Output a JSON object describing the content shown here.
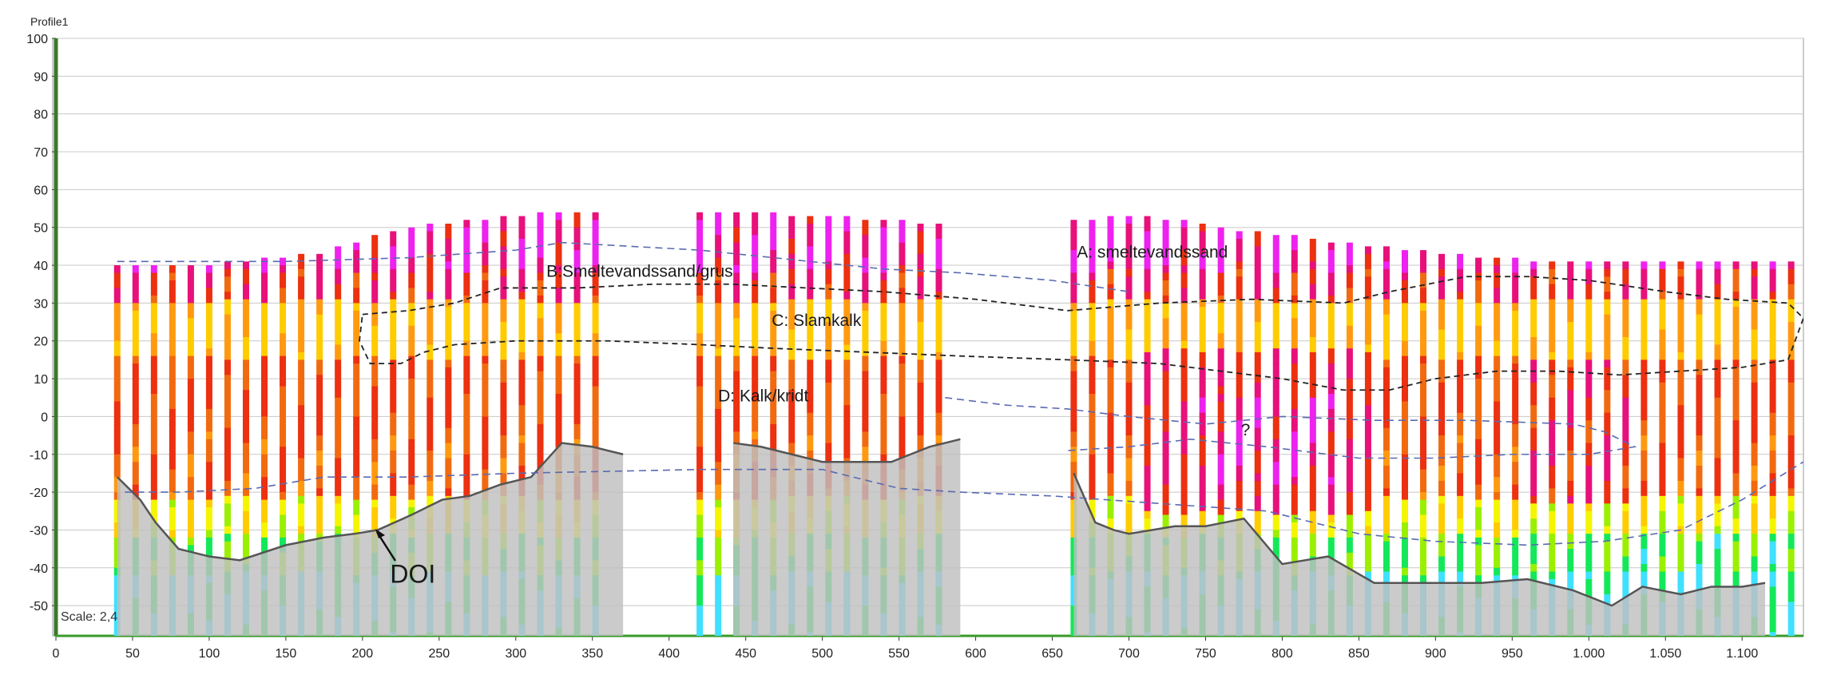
{
  "window_title": "Profile1",
  "scale_label": "Scale: 2,4",
  "colors": {
    "grid": "#c8c8c8",
    "axis_left": "#3a7a2a",
    "doi_fill": "#c0c0c0",
    "doi_line": "#555555",
    "boundary_blue": "#5a6ab0",
    "boundary_black": "#222222",
    "palette": [
      "#40e0ff",
      "#14e85a",
      "#9af000",
      "#f5f500",
      "#ffcc00",
      "#ff9a10",
      "#f26a10",
      "#ec3010",
      "#e8107a",
      "#ee22ee"
    ]
  },
  "chart_data": {
    "type": "heatmap",
    "title": "Profile1",
    "xlabel": "",
    "ylabel": "",
    "xlim": [
      0,
      1140
    ],
    "ylim": [
      -58,
      100
    ],
    "x_ticks": [
      "0",
      "50",
      "100",
      "150",
      "200",
      "250",
      "300",
      "350",
      "400",
      "450",
      "500",
      "550",
      "600",
      "650",
      "700",
      "750",
      "800",
      "850",
      "900",
      "950",
      "1.000",
      "1.050",
      "1.100"
    ],
    "y_ticks": [
      "100",
      "90",
      "80",
      "70",
      "60",
      "50",
      "40",
      "30",
      "20",
      "10",
      "0",
      "-10",
      "-20",
      "-30",
      "-40",
      "-50"
    ],
    "grid": true,
    "soundings": [
      {
        "x": 40,
        "top": 40
      },
      {
        "x": 52,
        "top": 40
      },
      {
        "x": 64,
        "top": 40
      },
      {
        "x": 76,
        "top": 40
      },
      {
        "x": 88,
        "top": 40
      },
      {
        "x": 100,
        "top": 40
      },
      {
        "x": 112,
        "top": 41
      },
      {
        "x": 124,
        "top": 41
      },
      {
        "x": 136,
        "top": 42
      },
      {
        "x": 148,
        "top": 42
      },
      {
        "x": 160,
        "top": 43
      },
      {
        "x": 172,
        "top": 43
      },
      {
        "x": 184,
        "top": 45
      },
      {
        "x": 196,
        "top": 46
      },
      {
        "x": 208,
        "top": 48
      },
      {
        "x": 220,
        "top": 49
      },
      {
        "x": 232,
        "top": 50
      },
      {
        "x": 244,
        "top": 51
      },
      {
        "x": 256,
        "top": 51
      },
      {
        "x": 268,
        "top": 52
      },
      {
        "x": 280,
        "top": 52
      },
      {
        "x": 292,
        "top": 53
      },
      {
        "x": 304,
        "top": 53
      },
      {
        "x": 316,
        "top": 54
      },
      {
        "x": 328,
        "top": 54
      },
      {
        "x": 340,
        "top": 54
      },
      {
        "x": 352,
        "top": 54
      },
      {
        "x": 420,
        "top": 54
      },
      {
        "x": 432,
        "top": 54
      },
      {
        "x": 444,
        "top": 54
      },
      {
        "x": 456,
        "top": 54
      },
      {
        "x": 468,
        "top": 54
      },
      {
        "x": 480,
        "top": 53
      },
      {
        "x": 492,
        "top": 53
      },
      {
        "x": 504,
        "top": 53
      },
      {
        "x": 516,
        "top": 53
      },
      {
        "x": 528,
        "top": 52
      },
      {
        "x": 540,
        "top": 52
      },
      {
        "x": 552,
        "top": 52
      },
      {
        "x": 564,
        "top": 51
      },
      {
        "x": 576,
        "top": 51
      },
      {
        "x": 664,
        "top": 52
      },
      {
        "x": 676,
        "top": 52
      },
      {
        "x": 688,
        "top": 53
      },
      {
        "x": 700,
        "top": 53
      },
      {
        "x": 712,
        "top": 53
      },
      {
        "x": 724,
        "top": 52
      },
      {
        "x": 736,
        "top": 52
      },
      {
        "x": 748,
        "top": 51
      },
      {
        "x": 760,
        "top": 50
      },
      {
        "x": 772,
        "top": 49
      },
      {
        "x": 784,
        "top": 49
      },
      {
        "x": 796,
        "top": 48
      },
      {
        "x": 808,
        "top": 48
      },
      {
        "x": 820,
        "top": 47
      },
      {
        "x": 832,
        "top": 46
      },
      {
        "x": 844,
        "top": 46
      },
      {
        "x": 856,
        "top": 45
      },
      {
        "x": 868,
        "top": 45
      },
      {
        "x": 880,
        "top": 44
      },
      {
        "x": 892,
        "top": 44
      },
      {
        "x": 904,
        "top": 43
      },
      {
        "x": 916,
        "top": 43
      },
      {
        "x": 928,
        "top": 42
      },
      {
        "x": 940,
        "top": 42
      },
      {
        "x": 952,
        "top": 42
      },
      {
        "x": 964,
        "top": 41
      },
      {
        "x": 976,
        "top": 41
      },
      {
        "x": 988,
        "top": 41
      },
      {
        "x": 1000,
        "top": 41
      },
      {
        "x": 1012,
        "top": 41
      },
      {
        "x": 1024,
        "top": 41
      },
      {
        "x": 1036,
        "top": 41
      },
      {
        "x": 1048,
        "top": 41
      },
      {
        "x": 1060,
        "top": 41
      },
      {
        "x": 1072,
        "top": 41
      },
      {
        "x": 1084,
        "top": 41
      },
      {
        "x": 1096,
        "top": 41
      },
      {
        "x": 1108,
        "top": 41
      },
      {
        "x": 1120,
        "top": 41
      },
      {
        "x": 1132,
        "top": 41
      }
    ],
    "doi_segments": [
      [
        [
          40,
          -16
        ],
        [
          55,
          -22
        ],
        [
          65,
          -28
        ],
        [
          80,
          -35
        ],
        [
          100,
          -37
        ],
        [
          120,
          -38
        ],
        [
          150,
          -34
        ],
        [
          175,
          -32
        ],
        [
          195,
          -31
        ],
        [
          210,
          -30
        ],
        [
          232,
          -26
        ],
        [
          252,
          -22
        ],
        [
          270,
          -21
        ],
        [
          290,
          -18
        ],
        [
          310,
          -16
        ],
        [
          330,
          -7
        ],
        [
          350,
          -8
        ],
        [
          370,
          -10
        ]
      ],
      [
        [
          442,
          -7
        ],
        [
          460,
          -8
        ],
        [
          480,
          -10
        ],
        [
          500,
          -12
        ],
        [
          520,
          -12
        ],
        [
          545,
          -12
        ],
        [
          570,
          -8
        ],
        [
          590,
          -6
        ]
      ],
      [
        [
          664,
          -15
        ],
        [
          678,
          -28
        ],
        [
          690,
          -30
        ],
        [
          700,
          -31
        ],
        [
          730,
          -29
        ],
        [
          750,
          -29
        ],
        [
          775,
          -27
        ],
        [
          800,
          -39
        ],
        [
          830,
          -37
        ],
        [
          860,
          -44
        ],
        [
          890,
          -44
        ],
        [
          930,
          -44
        ],
        [
          960,
          -43
        ],
        [
          990,
          -46
        ],
        [
          1015,
          -50
        ],
        [
          1035,
          -45
        ],
        [
          1060,
          -47
        ],
        [
          1080,
          -45
        ],
        [
          1100,
          -45
        ],
        [
          1115,
          -44
        ]
      ]
    ],
    "boundaries": [
      {
        "style": "blue-dashed",
        "points": [
          [
            45,
            -20
          ],
          [
            80,
            -20
          ],
          [
            130,
            -19
          ],
          [
            175,
            -16
          ],
          [
            230,
            -16
          ],
          [
            300,
            -15
          ],
          [
            420,
            -14
          ],
          [
            500,
            -14
          ],
          [
            550,
            -19
          ],
          [
            590,
            -20
          ],
          [
            650,
            -21
          ],
          [
            720,
            -23
          ],
          [
            790,
            -25
          ],
          [
            850,
            -31
          ],
          [
            900,
            -33
          ],
          [
            960,
            -34
          ],
          [
            1010,
            -33
          ],
          [
            1060,
            -30
          ],
          [
            1100,
            -22
          ],
          [
            1140,
            -12
          ]
        ]
      },
      {
        "style": "blue-dashed",
        "points": [
          [
            40,
            41
          ],
          [
            150,
            41
          ],
          [
            230,
            42
          ],
          [
            300,
            44
          ],
          [
            330,
            46
          ],
          [
            420,
            44
          ],
          [
            540,
            39
          ],
          [
            590,
            38
          ],
          [
            650,
            36
          ],
          [
            700,
            33
          ]
        ]
      },
      {
        "style": "blue-dashed",
        "points": [
          [
            580,
            5
          ],
          [
            620,
            3
          ],
          [
            660,
            2
          ],
          [
            700,
            0
          ],
          [
            750,
            -2
          ],
          [
            800,
            0
          ],
          [
            860,
            -1
          ],
          [
            920,
            -1
          ],
          [
            990,
            -2
          ],
          [
            1010,
            -4
          ],
          [
            1030,
            -8
          ],
          [
            1000,
            -10
          ],
          [
            950,
            -10
          ],
          [
            900,
            -11
          ],
          [
            850,
            -11
          ],
          [
            790,
            -8
          ],
          [
            740,
            -6
          ],
          [
            700,
            -8
          ],
          [
            660,
            -9
          ]
        ]
      },
      {
        "style": "black-dashed",
        "closed": true,
        "points": [
          [
            200,
            27
          ],
          [
            230,
            28
          ],
          [
            260,
            30
          ],
          [
            290,
            34
          ],
          [
            340,
            34
          ],
          [
            390,
            35
          ],
          [
            440,
            35
          ],
          [
            490,
            34
          ],
          [
            540,
            33
          ],
          [
            600,
            31
          ],
          [
            660,
            28
          ],
          [
            720,
            30
          ],
          [
            780,
            31
          ],
          [
            840,
            30
          ],
          [
            870,
            33
          ],
          [
            920,
            37
          ],
          [
            960,
            37
          ],
          [
            1000,
            36
          ],
          [
            1050,
            33
          ],
          [
            1090,
            31
          ],
          [
            1130,
            30
          ],
          [
            1140,
            26
          ],
          [
            1130,
            15
          ],
          [
            1100,
            13
          ],
          [
            1060,
            12
          ],
          [
            1020,
            11
          ],
          [
            980,
            12
          ],
          [
            940,
            12
          ],
          [
            900,
            10
          ],
          [
            870,
            7
          ],
          [
            840,
            7
          ],
          [
            800,
            10
          ],
          [
            760,
            12
          ],
          [
            720,
            14
          ],
          [
            660,
            15
          ],
          [
            590,
            16
          ],
          [
            530,
            17
          ],
          [
            470,
            18
          ],
          [
            420,
            19
          ],
          [
            360,
            20
          ],
          [
            300,
            20
          ],
          [
            260,
            19
          ],
          [
            240,
            17
          ],
          [
            225,
            14
          ],
          [
            205,
            14
          ],
          [
            198,
            20
          ]
        ]
      }
    ],
    "annotations": [
      {
        "text": "A: smeltevandssand",
        "x": 666,
        "y": 42
      },
      {
        "text": "B:Smeltevandssand/grus",
        "x": 320,
        "y": 37
      },
      {
        "text": "C: Slamkalk",
        "x": 467,
        "y": 24
      },
      {
        "text": "D: Kalk/kridt",
        "x": 432,
        "y": 4
      },
      {
        "text": "?",
        "x": 773,
        "y": -5
      },
      {
        "text": "DOI",
        "x": 218,
        "y": -44
      }
    ]
  }
}
